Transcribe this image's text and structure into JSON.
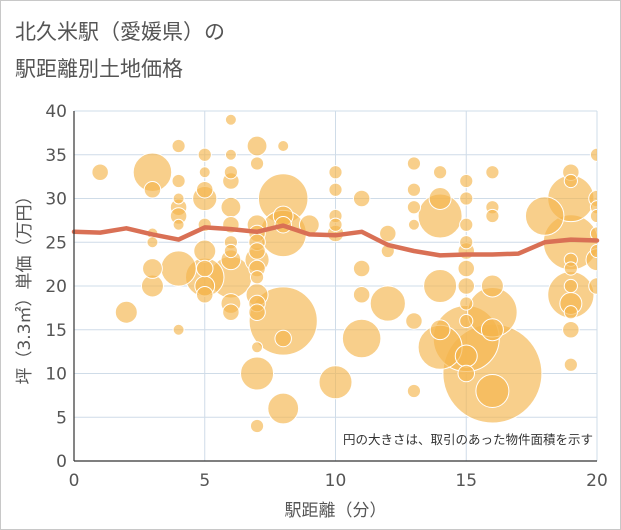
{
  "title_lines": [
    "北久米駅（愛媛県）の",
    "駅距離別土地価格"
  ],
  "chart_data": {
    "type": "scatter",
    "xlabel": "駅距離（分）",
    "ylabel": "坪（3.3㎡）単価（万円）",
    "xlim": [
      0,
      20
    ],
    "ylim": [
      0,
      40
    ],
    "x_ticks": [
      0,
      5,
      10,
      15,
      20
    ],
    "y_ticks": [
      0,
      5,
      10,
      15,
      20,
      25,
      30,
      35,
      40
    ],
    "grid": true,
    "annotation": "円の大きさは、取引のあった物件面積を示す",
    "colors": {
      "bubble": "#f5b54d",
      "bubble_edge": "#ffffff",
      "line": "#d97055",
      "grid": "#cfdce8",
      "axis_text": "#555555"
    },
    "bubble_note": "bubble size = relative transaction area",
    "points": [
      {
        "x": 1,
        "y": 33,
        "s": 1.5
      },
      {
        "x": 2,
        "y": 17,
        "s": 2
      },
      {
        "x": 3,
        "y": 33,
        "s": 3.5
      },
      {
        "x": 3,
        "y": 31,
        "s": 1.5
      },
      {
        "x": 3,
        "y": 26,
        "s": 1
      },
      {
        "x": 3,
        "y": 25,
        "s": 1
      },
      {
        "x": 3,
        "y": 22,
        "s": 1.8
      },
      {
        "x": 3,
        "y": 20,
        "s": 2
      },
      {
        "x": 4,
        "y": 36,
        "s": 1.2
      },
      {
        "x": 4,
        "y": 32,
        "s": 1.2
      },
      {
        "x": 4,
        "y": 30,
        "s": 1
      },
      {
        "x": 4,
        "y": 29,
        "s": 1.5
      },
      {
        "x": 4,
        "y": 28,
        "s": 1.5
      },
      {
        "x": 4,
        "y": 27,
        "s": 1
      },
      {
        "x": 4,
        "y": 22,
        "s": 3.2
      },
      {
        "x": 4,
        "y": 15,
        "s": 1
      },
      {
        "x": 5,
        "y": 35,
        "s": 1.2
      },
      {
        "x": 5,
        "y": 33,
        "s": 1
      },
      {
        "x": 5,
        "y": 31,
        "s": 1.5
      },
      {
        "x": 5,
        "y": 30,
        "s": 2.2
      },
      {
        "x": 5,
        "y": 27,
        "s": 1.2
      },
      {
        "x": 5,
        "y": 24,
        "s": 2
      },
      {
        "x": 5,
        "y": 22,
        "s": 1.5
      },
      {
        "x": 5,
        "y": 21,
        "s": 3.5
      },
      {
        "x": 5,
        "y": 20,
        "s": 1.8
      },
      {
        "x": 5,
        "y": 19,
        "s": 1.5
      },
      {
        "x": 6,
        "y": 39,
        "s": 1
      },
      {
        "x": 6,
        "y": 35,
        "s": 1
      },
      {
        "x": 6,
        "y": 33,
        "s": 1.2
      },
      {
        "x": 6,
        "y": 32,
        "s": 1.5
      },
      {
        "x": 6,
        "y": 29,
        "s": 1.8
      },
      {
        "x": 6,
        "y": 27,
        "s": 1.5
      },
      {
        "x": 6,
        "y": 25,
        "s": 1.2
      },
      {
        "x": 6,
        "y": 24,
        "s": 1.2
      },
      {
        "x": 6,
        "y": 23,
        "s": 1.8
      },
      {
        "x": 6,
        "y": 21,
        "s": 3.8
      },
      {
        "x": 6,
        "y": 18,
        "s": 1.8
      },
      {
        "x": 6,
        "y": 17,
        "s": 1.5
      },
      {
        "x": 7,
        "y": 36,
        "s": 1.8
      },
      {
        "x": 7,
        "y": 34,
        "s": 1.2
      },
      {
        "x": 7,
        "y": 27,
        "s": 1.8
      },
      {
        "x": 7,
        "y": 26,
        "s": 1.5
      },
      {
        "x": 7,
        "y": 25,
        "s": 1.5
      },
      {
        "x": 7,
        "y": 24,
        "s": 1.5
      },
      {
        "x": 7,
        "y": 23,
        "s": 2.2
      },
      {
        "x": 7,
        "y": 22,
        "s": 1.5
      },
      {
        "x": 7,
        "y": 21,
        "s": 1.2
      },
      {
        "x": 7,
        "y": 19,
        "s": 2
      },
      {
        "x": 7,
        "y": 18,
        "s": 1.5
      },
      {
        "x": 7,
        "y": 17,
        "s": 1.5
      },
      {
        "x": 7,
        "y": 13,
        "s": 1
      },
      {
        "x": 7,
        "y": 10,
        "s": 3
      },
      {
        "x": 7,
        "y": 4,
        "s": 1.2
      },
      {
        "x": 8,
        "y": 36,
        "s": 1
      },
      {
        "x": 8,
        "y": 30,
        "s": 4.5
      },
      {
        "x": 8,
        "y": 28,
        "s": 1.8
      },
      {
        "x": 8,
        "y": 27,
        "s": 1.5
      },
      {
        "x": 8,
        "y": 26,
        "s": 4.2
      },
      {
        "x": 8,
        "y": 16,
        "s": 6.2
      },
      {
        "x": 8,
        "y": 14,
        "s": 1.5
      },
      {
        "x": 8,
        "y": 6,
        "s": 2.8
      },
      {
        "x": 9,
        "y": 27,
        "s": 1.8
      },
      {
        "x": 10,
        "y": 33,
        "s": 1.2
      },
      {
        "x": 10,
        "y": 31,
        "s": 1.2
      },
      {
        "x": 10,
        "y": 28,
        "s": 1.2
      },
      {
        "x": 10,
        "y": 27,
        "s": 1.2
      },
      {
        "x": 10,
        "y": 26,
        "s": 1.5
      },
      {
        "x": 10,
        "y": 9,
        "s": 3
      },
      {
        "x": 11,
        "y": 30,
        "s": 1.5
      },
      {
        "x": 11,
        "y": 22,
        "s": 1.5
      },
      {
        "x": 11,
        "y": 19,
        "s": 1.5
      },
      {
        "x": 11,
        "y": 14,
        "s": 3.5
      },
      {
        "x": 12,
        "y": 26,
        "s": 1.5
      },
      {
        "x": 12,
        "y": 24,
        "s": 1.2
      },
      {
        "x": 12,
        "y": 18,
        "s": 3.2
      },
      {
        "x": 13,
        "y": 34,
        "s": 1.2
      },
      {
        "x": 13,
        "y": 31,
        "s": 1.2
      },
      {
        "x": 13,
        "y": 29,
        "s": 1.2
      },
      {
        "x": 13,
        "y": 27,
        "s": 1
      },
      {
        "x": 13,
        "y": 16,
        "s": 1.5
      },
      {
        "x": 13,
        "y": 8,
        "s": 1.2
      },
      {
        "x": 14,
        "y": 33,
        "s": 1.2
      },
      {
        "x": 14,
        "y": 30,
        "s": 2
      },
      {
        "x": 14,
        "y": 28,
        "s": 4
      },
      {
        "x": 14,
        "y": 20,
        "s": 3
      },
      {
        "x": 14,
        "y": 15,
        "s": 1.8
      },
      {
        "x": 14,
        "y": 13,
        "s": 4
      },
      {
        "x": 15,
        "y": 32,
        "s": 1.2
      },
      {
        "x": 15,
        "y": 30,
        "s": 1.2
      },
      {
        "x": 15,
        "y": 27,
        "s": 1.2
      },
      {
        "x": 15,
        "y": 25,
        "s": 1.2
      },
      {
        "x": 15,
        "y": 24,
        "s": 1.5
      },
      {
        "x": 15,
        "y": 22,
        "s": 1.5
      },
      {
        "x": 15,
        "y": 20,
        "s": 1.5
      },
      {
        "x": 15,
        "y": 18,
        "s": 1.2
      },
      {
        "x": 15,
        "y": 16,
        "s": 1.2
      },
      {
        "x": 15,
        "y": 14,
        "s": 6
      },
      {
        "x": 15,
        "y": 12,
        "s": 2
      },
      {
        "x": 15,
        "y": 10,
        "s": 1.5
      },
      {
        "x": 16,
        "y": 33,
        "s": 1.2
      },
      {
        "x": 16,
        "y": 29,
        "s": 1.2
      },
      {
        "x": 16,
        "y": 28,
        "s": 1.2
      },
      {
        "x": 16,
        "y": 20,
        "s": 2
      },
      {
        "x": 16,
        "y": 17,
        "s": 4.5
      },
      {
        "x": 16,
        "y": 15,
        "s": 2
      },
      {
        "x": 16,
        "y": 10,
        "s": 9
      },
      {
        "x": 16,
        "y": 8,
        "s": 3
      },
      {
        "x": 18,
        "y": 28,
        "s": 3.5
      },
      {
        "x": 19,
        "y": 33,
        "s": 1.5
      },
      {
        "x": 19,
        "y": 32,
        "s": 1.2
      },
      {
        "x": 19,
        "y": 30,
        "s": 4.2
      },
      {
        "x": 19,
        "y": 25,
        "s": 5
      },
      {
        "x": 19,
        "y": 23,
        "s": 1.2
      },
      {
        "x": 19,
        "y": 22,
        "s": 1.2
      },
      {
        "x": 19,
        "y": 20,
        "s": 1.2
      },
      {
        "x": 19,
        "y": 19,
        "s": 4.2
      },
      {
        "x": 19,
        "y": 18,
        "s": 2
      },
      {
        "x": 19,
        "y": 17,
        "s": 1.2
      },
      {
        "x": 19,
        "y": 15,
        "s": 1.5
      },
      {
        "x": 19,
        "y": 11,
        "s": 1.2
      },
      {
        "x": 20,
        "y": 35,
        "s": 1.2
      },
      {
        "x": 20,
        "y": 30,
        "s": 1.5
      },
      {
        "x": 20,
        "y": 29,
        "s": 1.2
      },
      {
        "x": 20,
        "y": 28,
        "s": 1.2
      },
      {
        "x": 20,
        "y": 26,
        "s": 1.2
      },
      {
        "x": 20,
        "y": 24,
        "s": 1.2
      },
      {
        "x": 20,
        "y": 23,
        "s": 2
      },
      {
        "x": 20,
        "y": 20,
        "s": 1.5
      }
    ],
    "trend_line": {
      "x": [
        0,
        1,
        2,
        3,
        4,
        5,
        6,
        7,
        8,
        9,
        10,
        11,
        12,
        13,
        14,
        15,
        16,
        17,
        18,
        19,
        20
      ],
      "y": [
        26.2,
        26.1,
        26.6,
        25.9,
        25.3,
        26.7,
        26.5,
        26.2,
        26.9,
        25.9,
        25.8,
        26.2,
        24.7,
        24.0,
        23.5,
        23.6,
        23.6,
        23.7,
        25.0,
        25.3,
        25.2
      ]
    }
  }
}
